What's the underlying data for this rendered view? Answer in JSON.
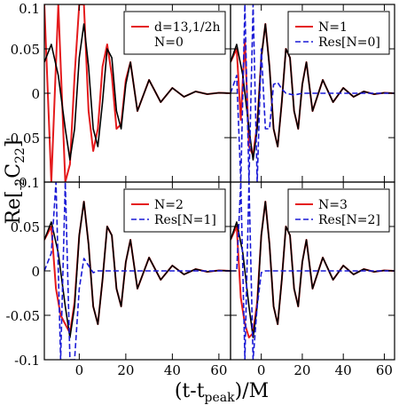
{
  "figure": {
    "ylabel": {
      "main": "Re[",
      "sub1": "-2",
      "mid": "C",
      "sub2": "22",
      "tail": "]"
    },
    "xlabel": {
      "main": "(t-t",
      "sub": "peak",
      "tail": ")/M"
    },
    "colors": {
      "black": "#000000",
      "red": "#e41a1c",
      "blue": "#1a1ad6"
    }
  },
  "chart_data": [
    {
      "type": "line",
      "panel": "top-left",
      "xlim": [
        -15,
        65
      ],
      "ylim": [
        -0.1,
        0.1
      ],
      "xticks": [
        0,
        20,
        40,
        60
      ],
      "yticks": [
        -0.1,
        -0.05,
        0,
        0.05,
        0.1
      ],
      "ytick_labels": [
        "-0.1",
        "-0.05",
        "0",
        "0.05",
        "0.1"
      ],
      "legend_position": "top-right",
      "legend": [
        "d=13,1/2h",
        "N=0"
      ],
      "series": [
        {
          "name": "d=13,1/2h",
          "color": "#e41a1c",
          "style": "solid",
          "x": [
            -15,
            -12,
            -9,
            -6,
            -4,
            -2,
            0,
            2,
            4,
            6,
            8,
            10,
            12,
            14,
            16,
            18,
            20,
            22,
            25,
            30,
            35,
            40,
            45,
            50,
            55,
            60,
            65
          ],
          "y": [
            0.1,
            -0.1,
            0.1,
            -0.1,
            -0.08,
            0.02,
            0.1,
            0.1,
            -0.02,
            -0.065,
            -0.04,
            0.03,
            0.055,
            0.02,
            -0.04,
            -0.035,
            0.015,
            0.035,
            -0.02,
            0.015,
            -0.01,
            0.006,
            -0.004,
            0.002,
            -0.001,
            0.0005,
            0
          ]
        },
        {
          "name": "",
          "color": "#000000",
          "style": "solid",
          "x": [
            -15,
            -12,
            -9,
            -6,
            -4,
            -2,
            0,
            2,
            4,
            6,
            8,
            10,
            12,
            14,
            16,
            18,
            20,
            22,
            25,
            30,
            35,
            40,
            45,
            50,
            55,
            60,
            65
          ],
          "y": [
            0.035,
            0.055,
            0.02,
            -0.04,
            -0.075,
            -0.04,
            0.04,
            0.078,
            0.03,
            -0.04,
            -0.06,
            -0.01,
            0.05,
            0.04,
            -0.02,
            -0.04,
            0.01,
            0.035,
            -0.02,
            0.015,
            -0.01,
            0.006,
            -0.004,
            0.002,
            -0.001,
            0.0005,
            0
          ]
        }
      ]
    },
    {
      "type": "line",
      "panel": "top-right",
      "xlim": [
        -15,
        65
      ],
      "ylim": [
        -0.1,
        0.1
      ],
      "xticks": [
        0,
        20,
        40,
        60
      ],
      "yticks": [
        -0.1,
        -0.05,
        0,
        0.05,
        0.1
      ],
      "legend_position": "top-right",
      "legend": [
        "N=1",
        "Res[N=0]"
      ],
      "series": [
        {
          "name": "N=1",
          "color": "#e41a1c",
          "style": "solid",
          "x": [
            -15,
            -12,
            -10,
            -8,
            -6,
            -4,
            -2,
            0,
            2,
            4,
            6,
            8,
            10,
            12,
            14,
            16,
            18,
            20,
            22,
            25,
            30,
            35,
            40,
            45,
            50,
            55,
            60,
            65
          ],
          "y": [
            0.035,
            0.05,
            -0.03,
            0.06,
            -0.06,
            -0.07,
            -0.035,
            0.04,
            0.078,
            0.03,
            -0.04,
            -0.06,
            -0.01,
            0.05,
            0.04,
            -0.02,
            -0.04,
            0.01,
            0.035,
            -0.02,
            0.015,
            -0.01,
            0.006,
            -0.004,
            0.002,
            -0.001,
            0.0005,
            0
          ]
        },
        {
          "name": "",
          "color": "#000000",
          "style": "solid",
          "x": [
            -15,
            -12,
            -9,
            -6,
            -4,
            -2,
            0,
            2,
            4,
            6,
            8,
            10,
            12,
            14,
            16,
            18,
            20,
            22,
            25,
            30,
            35,
            40,
            45,
            50,
            55,
            60,
            65
          ],
          "y": [
            0.035,
            0.055,
            0.02,
            -0.04,
            -0.075,
            -0.04,
            0.04,
            0.078,
            0.03,
            -0.04,
            -0.06,
            -0.01,
            0.05,
            0.04,
            -0.02,
            -0.04,
            0.01,
            0.035,
            -0.02,
            0.015,
            -0.01,
            0.006,
            -0.004,
            0.002,
            -0.001,
            0.0005,
            0
          ]
        },
        {
          "name": "Res[N=0]",
          "color": "#1a1ad6",
          "style": "dashed",
          "x": [
            -15,
            -12,
            -10,
            -8,
            -6,
            -4,
            -2,
            0,
            2,
            4,
            6,
            8,
            10,
            12,
            16,
            20,
            30,
            40,
            50,
            60,
            65
          ],
          "y": [
            0.0,
            0.02,
            -0.1,
            0.1,
            -0.1,
            0.1,
            -0.1,
            0.05,
            -0.04,
            -0.04,
            0.01,
            0.012,
            0.005,
            0.0,
            -0.002,
            0.0,
            0.0,
            0.0,
            0.0,
            0.0,
            0.0
          ]
        }
      ]
    },
    {
      "type": "line",
      "panel": "bottom-left",
      "xlim": [
        -15,
        65
      ],
      "ylim": [
        -0.1,
        0.1
      ],
      "xticks": [
        0,
        20,
        40,
        60
      ],
      "xtick_labels": [
        "0",
        "20",
        "40",
        "60"
      ],
      "yticks": [
        -0.1,
        -0.05,
        0,
        0.05,
        0.1
      ],
      "ytick_labels": [
        "-0.1",
        "-0.05",
        "0",
        "0.05",
        ""
      ],
      "legend_position": "top-right",
      "legend": [
        "N=2",
        "Res[N=1]"
      ],
      "series": [
        {
          "name": "N=2",
          "color": "#e41a1c",
          "style": "solid",
          "x": [
            -15,
            -12,
            -10,
            -8,
            -6,
            -4,
            -2,
            0,
            2,
            4,
            6,
            8,
            10,
            12,
            14,
            16,
            18,
            20,
            22,
            25,
            30,
            35,
            40,
            45,
            50,
            55,
            60,
            65
          ],
          "y": [
            0.035,
            0.05,
            -0.02,
            -0.05,
            -0.06,
            -0.07,
            -0.035,
            0.04,
            0.078,
            0.03,
            -0.04,
            -0.06,
            -0.01,
            0.05,
            0.04,
            -0.02,
            -0.04,
            0.01,
            0.035,
            -0.02,
            0.015,
            -0.01,
            0.006,
            -0.004,
            0.002,
            -0.001,
            0.0005,
            0
          ]
        },
        {
          "name": "",
          "color": "#000000",
          "style": "solid",
          "x": [
            -15,
            -12,
            -9,
            -6,
            -4,
            -2,
            0,
            2,
            4,
            6,
            8,
            10,
            12,
            14,
            16,
            18,
            20,
            22,
            25,
            30,
            35,
            40,
            45,
            50,
            55,
            60,
            65
          ],
          "y": [
            0.035,
            0.055,
            0.02,
            -0.04,
            -0.075,
            -0.04,
            0.04,
            0.078,
            0.03,
            -0.04,
            -0.06,
            -0.01,
            0.05,
            0.04,
            -0.02,
            -0.04,
            0.01,
            0.035,
            -0.02,
            0.015,
            -0.01,
            0.006,
            -0.004,
            0.002,
            -0.001,
            0.0005,
            0
          ]
        },
        {
          "name": "Res[N=1]",
          "color": "#1a1ad6",
          "style": "dashed",
          "x": [
            -15,
            -12,
            -10,
            -8,
            -6,
            -4,
            -2,
            0,
            2,
            4,
            6,
            8,
            10,
            14,
            20,
            30,
            40,
            50,
            60,
            65
          ],
          "y": [
            0.0,
            0.02,
            0.1,
            -0.1,
            0.1,
            -0.1,
            -0.1,
            -0.02,
            0.014,
            0.006,
            -0.002,
            0.0,
            0.0,
            0.0,
            0.0,
            0.0,
            0.0,
            0.0,
            0.0,
            0.0
          ]
        }
      ]
    },
    {
      "type": "line",
      "panel": "bottom-right",
      "xlim": [
        -15,
        65
      ],
      "ylim": [
        -0.1,
        0.1
      ],
      "xticks": [
        0,
        20,
        40,
        60
      ],
      "xtick_labels": [
        "0",
        "20",
        "40",
        "60"
      ],
      "yticks": [
        -0.1,
        -0.05,
        0,
        0.05,
        0.1
      ],
      "legend_position": "top-right",
      "legend": [
        "N=3",
        "Res[N=2]"
      ],
      "series": [
        {
          "name": "N=3",
          "color": "#e41a1c",
          "style": "solid",
          "x": [
            -15,
            -12,
            -10,
            -8,
            -6,
            -4,
            -2,
            0,
            2,
            4,
            6,
            8,
            10,
            12,
            14,
            16,
            18,
            20,
            22,
            25,
            30,
            35,
            40,
            45,
            50,
            55,
            60,
            65
          ],
          "y": [
            0.035,
            0.05,
            -0.03,
            -0.06,
            -0.075,
            -0.07,
            -0.035,
            0.04,
            0.078,
            0.03,
            -0.04,
            -0.06,
            -0.01,
            0.05,
            0.04,
            -0.02,
            -0.04,
            0.01,
            0.035,
            -0.02,
            0.015,
            -0.01,
            0.006,
            -0.004,
            0.002,
            -0.001,
            0.0005,
            0
          ]
        },
        {
          "name": "",
          "color": "#000000",
          "style": "solid",
          "x": [
            -15,
            -12,
            -9,
            -6,
            -4,
            -2,
            0,
            2,
            4,
            6,
            8,
            10,
            12,
            14,
            16,
            18,
            20,
            22,
            25,
            30,
            35,
            40,
            45,
            50,
            55,
            60,
            65
          ],
          "y": [
            0.035,
            0.055,
            0.02,
            -0.04,
            -0.075,
            -0.04,
            0.04,
            0.078,
            0.03,
            -0.04,
            -0.06,
            -0.01,
            0.05,
            0.04,
            -0.02,
            -0.04,
            0.01,
            0.035,
            -0.02,
            0.015,
            -0.01,
            0.006,
            -0.004,
            0.002,
            -0.001,
            0.0005,
            0
          ]
        },
        {
          "name": "Res[N=2]",
          "color": "#1a1ad6",
          "style": "dashed",
          "x": [
            -15,
            -12,
            -10,
            -8,
            -6,
            -4,
            -2,
            0,
            2,
            4,
            6,
            10,
            20,
            30,
            40,
            50,
            60,
            65
          ],
          "y": [
            0.0,
            0.0,
            0.1,
            -0.1,
            0.1,
            -0.1,
            -0.04,
            -0.002,
            0.0,
            0.0,
            0.0,
            0.0,
            0.0,
            0.0,
            0.0,
            0.0,
            0.0,
            0.0
          ]
        }
      ]
    }
  ]
}
